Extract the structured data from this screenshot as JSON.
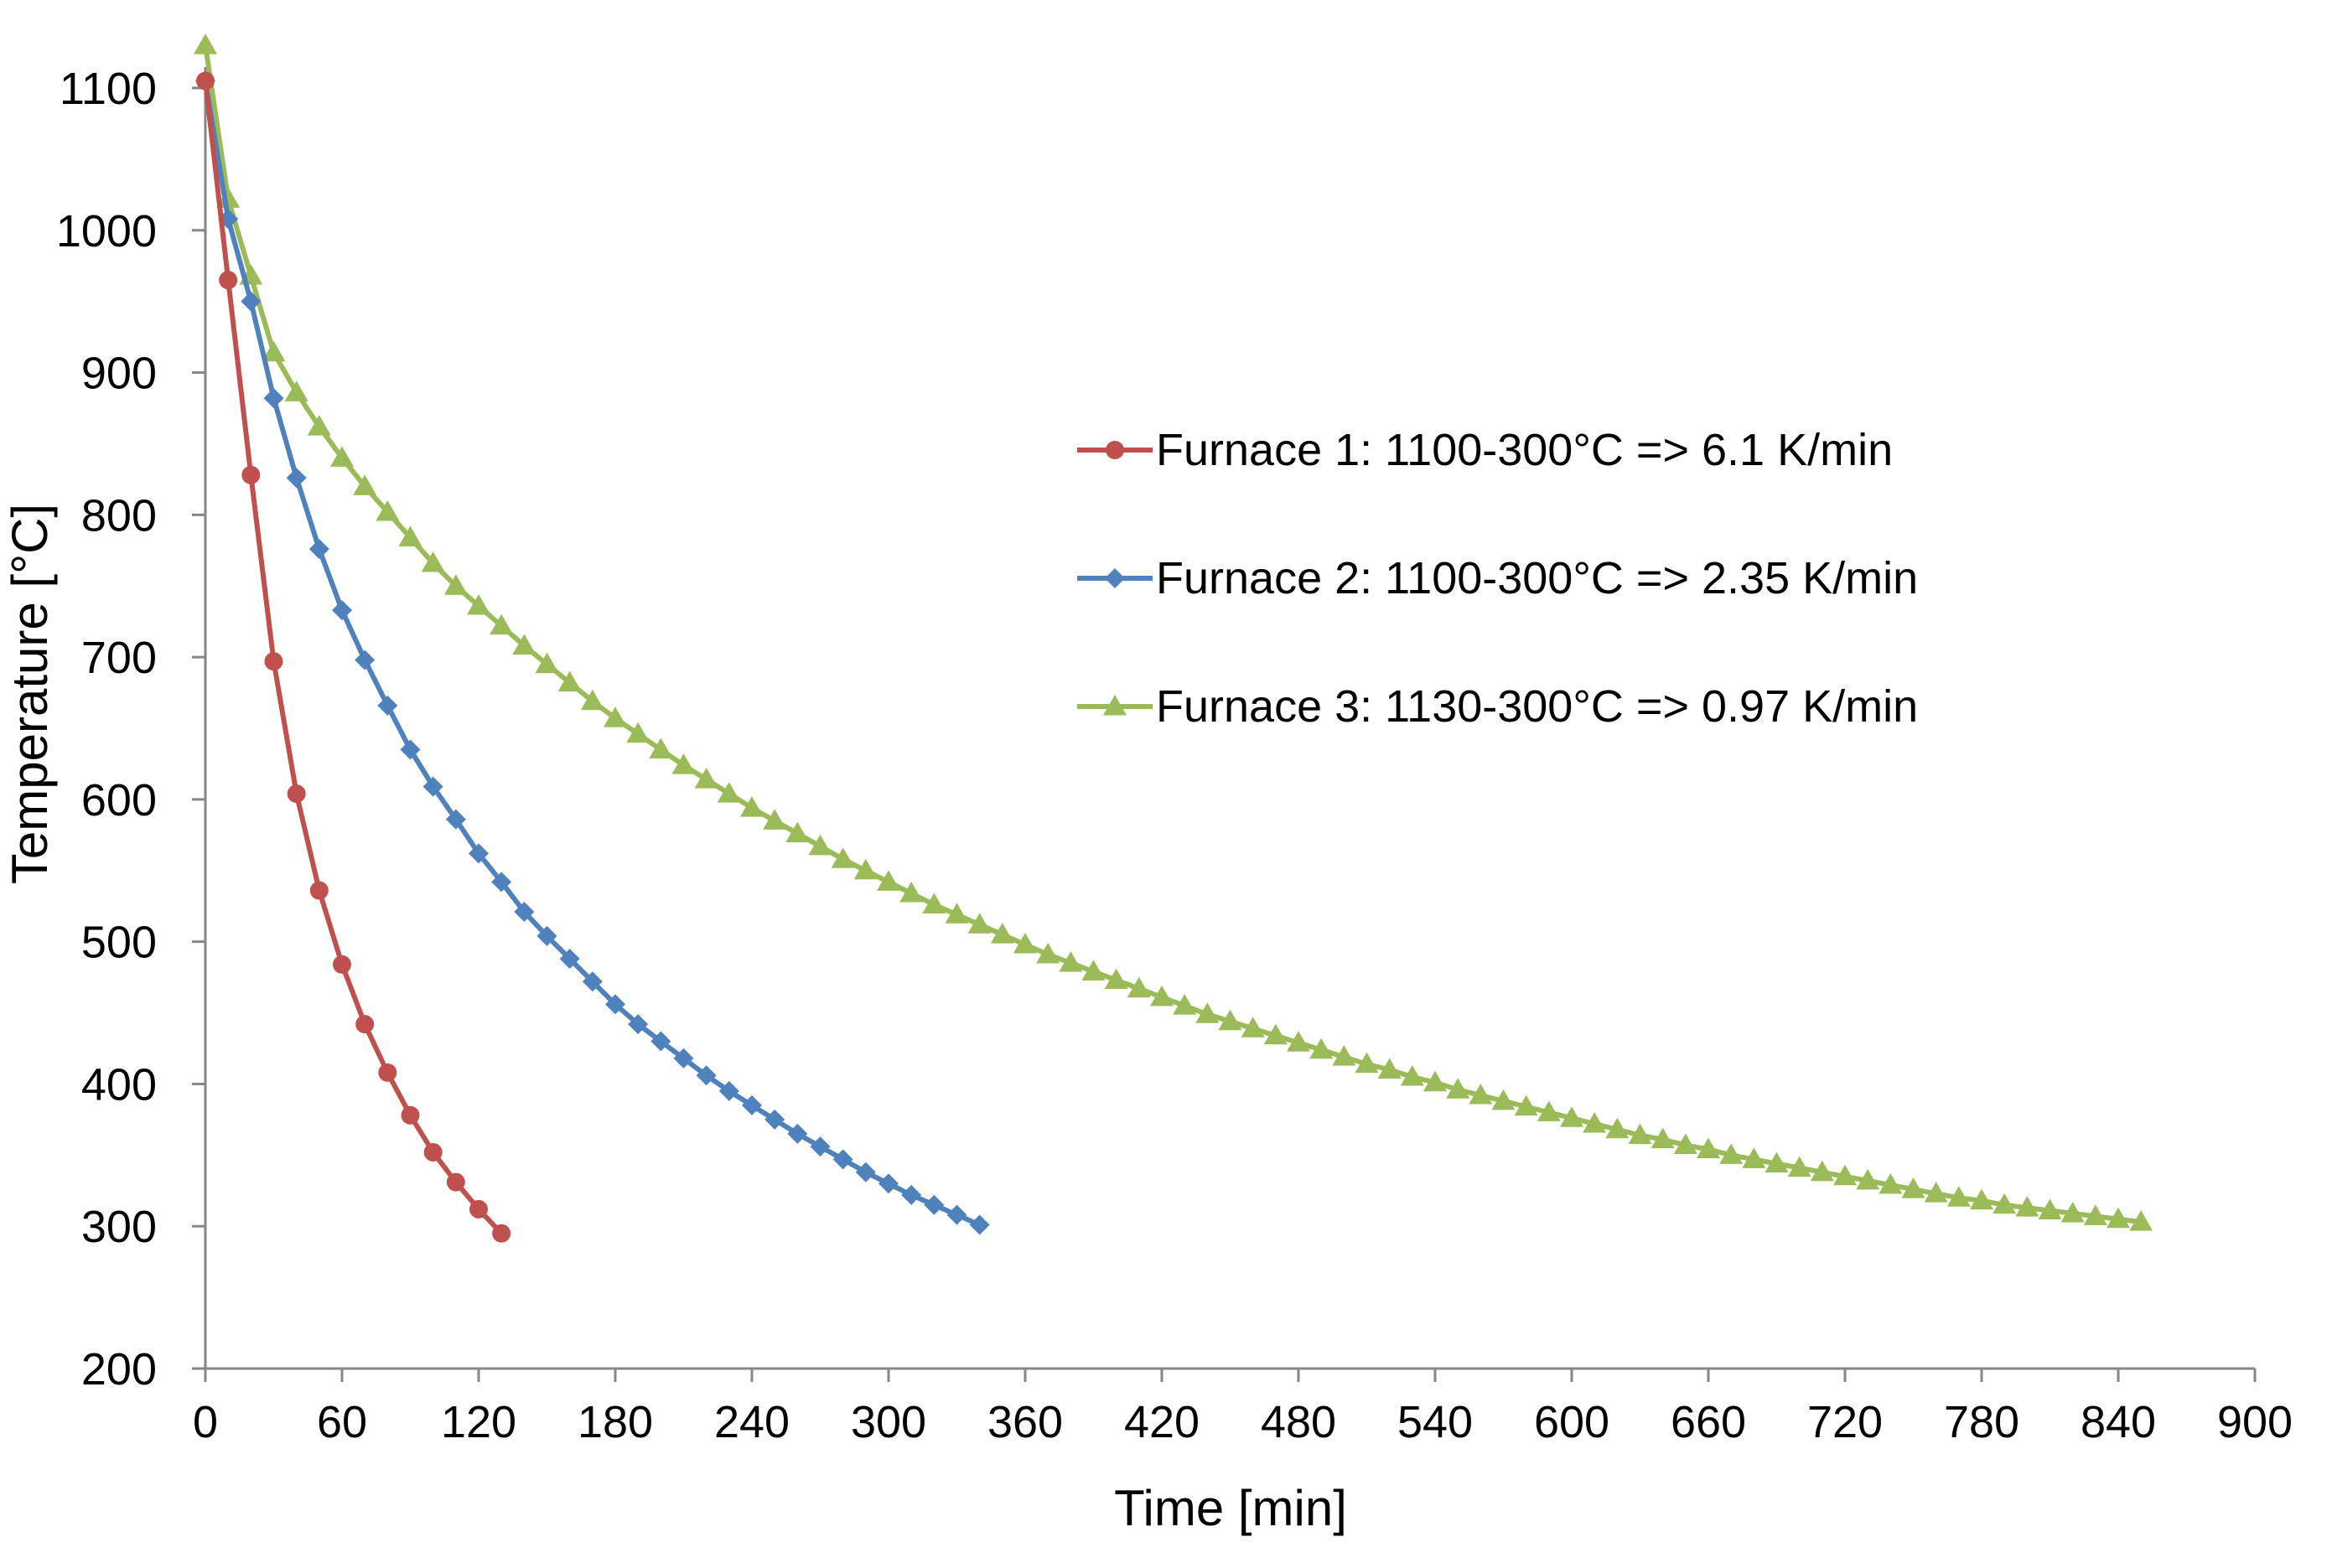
{
  "chart_data": {
    "type": "line",
    "title": "",
    "xlabel": "Time [min]",
    "ylabel": "Temperature [°C]",
    "xlim": [
      0,
      900
    ],
    "ylim": [
      200,
      1100
    ],
    "xticks": [
      "0",
      "60",
      "120",
      "180",
      "240",
      "300",
      "360",
      "420",
      "480",
      "540",
      "600",
      "660",
      "720",
      "780",
      "840",
      "900"
    ],
    "yticks": [
      "200",
      "300",
      "400",
      "500",
      "600",
      "700",
      "800",
      "900",
      "1000",
      "1100"
    ],
    "grid": false,
    "legend_position": "right",
    "series": [
      {
        "name": "Furnace 1: 1100-300°C => 6.1 K/min",
        "color": "#c0504d",
        "marker": "circle",
        "x": [
          0,
          10,
          20,
          30,
          40,
          50,
          60,
          70,
          80,
          90,
          100,
          110,
          120,
          130
        ],
        "y": [
          1105,
          965,
          828,
          697,
          604,
          536,
          484,
          442,
          408,
          378,
          352,
          331,
          312,
          295
        ]
      },
      {
        "name": "Furnace 2: 1100-300°C => 2.35 K/min",
        "color": "#4f81bd",
        "marker": "diamond",
        "x": [
          0,
          10,
          20,
          30,
          40,
          50,
          60,
          70,
          80,
          90,
          100,
          110,
          120,
          130,
          140,
          150,
          160,
          170,
          180,
          190,
          200,
          210,
          220,
          230,
          240,
          250,
          260,
          270,
          280,
          290,
          300,
          310,
          320,
          330,
          340
        ],
        "y": [
          1105,
          1008,
          950,
          882,
          826,
          776,
          733,
          698,
          666,
          635,
          609,
          586,
          562,
          542,
          521,
          504,
          488,
          472,
          456,
          442,
          430,
          418,
          406,
          395,
          385,
          375,
          365,
          356,
          347,
          338,
          330,
          322,
          315,
          308,
          301
        ]
      },
      {
        "name": "Furnace 3: 1130-300°C => 0.97 K/min",
        "color": "#9bbb59",
        "marker": "triangle",
        "x": [
          0,
          10,
          20,
          30,
          40,
          50,
          60,
          70,
          80,
          90,
          100,
          110,
          120,
          130,
          140,
          150,
          160,
          170,
          180,
          190,
          200,
          210,
          220,
          230,
          240,
          250,
          260,
          270,
          280,
          290,
          300,
          310,
          320,
          330,
          340,
          350,
          360,
          370,
          380,
          390,
          400,
          410,
          420,
          430,
          440,
          450,
          460,
          470,
          480,
          490,
          500,
          510,
          520,
          530,
          540,
          550,
          560,
          570,
          580,
          590,
          600,
          610,
          620,
          630,
          640,
          650,
          660,
          670,
          680,
          690,
          700,
          710,
          720,
          730,
          740,
          750,
          760,
          770,
          780,
          790,
          800,
          810,
          820,
          830,
          840,
          850
        ],
        "y": [
          1130,
          1022,
          968,
          914,
          886,
          862,
          840,
          820,
          802,
          784,
          766,
          750,
          736,
          722,
          708,
          695,
          682,
          669,
          657,
          646,
          635,
          624,
          614,
          604,
          594,
          585,
          576,
          567,
          558,
          550,
          542,
          534,
          526,
          519,
          512,
          505,
          498,
          491,
          485,
          479,
          473,
          467,
          461,
          455,
          449,
          444,
          439,
          434,
          429,
          424,
          419,
          414,
          410,
          405,
          401,
          396,
          392,
          388,
          384,
          380,
          376,
          372,
          368,
          364,
          361,
          357,
          354,
          350,
          347,
          344,
          341,
          338,
          335,
          332,
          329,
          326,
          323,
          320,
          318,
          315,
          313,
          311,
          309,
          307,
          305,
          303
        ]
      }
    ]
  }
}
